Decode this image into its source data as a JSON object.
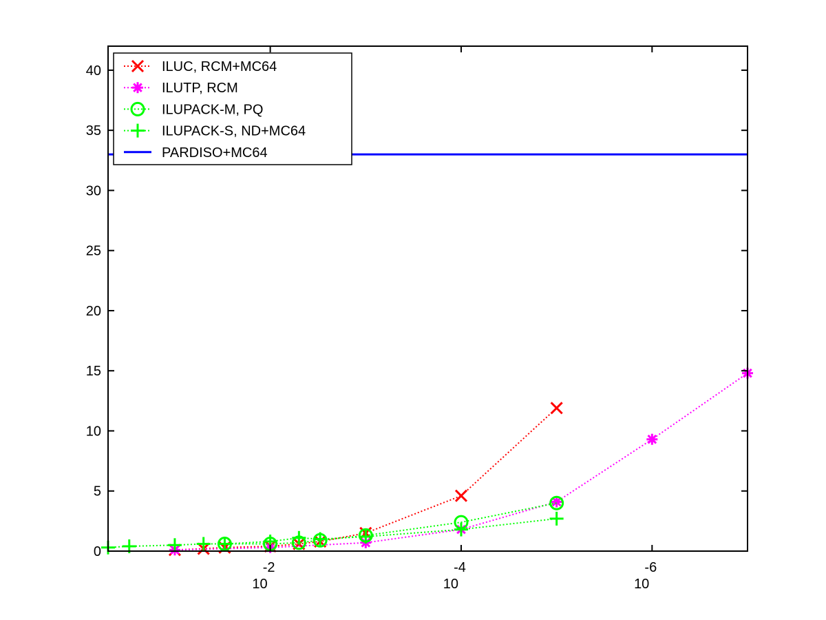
{
  "chart_data": {
    "type": "line",
    "title": "",
    "xlabel": "",
    "ylabel": "",
    "x_scale": "log",
    "x_reversed": true,
    "xlim": [
      0.5,
      1e-07
    ],
    "ylim": [
      0,
      42
    ],
    "xticks": [
      {
        "value": 0.01,
        "base": "10",
        "exp": "-2"
      },
      {
        "value": 0.0001,
        "base": "10",
        "exp": "-4"
      },
      {
        "value": 1e-06,
        "base": "10",
        "exp": "-6"
      }
    ],
    "yticks": [
      0,
      5,
      10,
      15,
      20,
      25,
      30,
      35,
      40
    ],
    "legend_position": "top-left",
    "series": [
      {
        "name": "ILUC, RCM+MC64",
        "color": "#ff0000",
        "marker": "x",
        "line_style": "dotted",
        "x": [
          0.1,
          0.05,
          0.03,
          0.01,
          0.005,
          0.003,
          0.001,
          0.0001,
          1e-05
        ],
        "y": [
          0.1,
          0.2,
          0.3,
          0.4,
          0.6,
          0.8,
          1.5,
          4.6,
          11.9
        ]
      },
      {
        "name": "ILUTP, RCM",
        "color": "#ff00ff",
        "marker": "asterisk",
        "line_style": "dotted",
        "x": [
          0.1,
          0.01,
          0.001,
          0.0001,
          1e-05,
          1e-06,
          1e-07
        ],
        "y": [
          0.1,
          0.3,
          0.7,
          1.8,
          4.1,
          9.3,
          14.8
        ]
      },
      {
        "name": "ILUPACK-M, PQ",
        "color": "#00ff00",
        "marker": "circle",
        "line_style": "dotted",
        "x": [
          0.03,
          0.01,
          0.005,
          0.003,
          0.001,
          0.0001,
          1e-05
        ],
        "y": [
          0.6,
          0.6,
          0.7,
          0.9,
          1.3,
          2.4,
          4.0
        ]
      },
      {
        "name": "ILUPACK-S, ND+MC64",
        "color": "#00ff00",
        "marker": "plus",
        "line_style": "dotted",
        "x": [
          0.5,
          0.3,
          0.1,
          0.05,
          0.03,
          0.01,
          0.005,
          0.003,
          0.001,
          0.0001,
          1e-05
        ],
        "y": [
          0.3,
          0.4,
          0.5,
          0.6,
          0.6,
          0.8,
          1.1,
          1.0,
          1.2,
          1.8,
          2.7
        ]
      },
      {
        "name": "PARDISO+MC64",
        "color": "#0000ff",
        "marker": "none",
        "line_style": "solid",
        "x": [
          0.5,
          1e-07
        ],
        "y": [
          33,
          33
        ]
      }
    ]
  }
}
